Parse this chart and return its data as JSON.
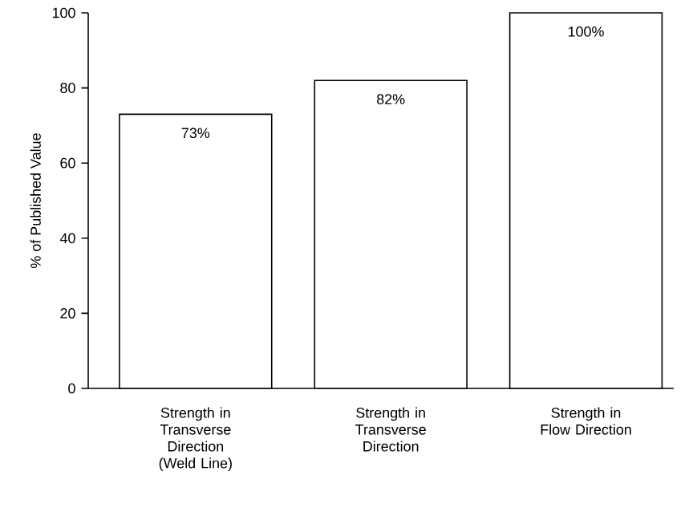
{
  "chart_data": {
    "type": "bar",
    "ylabel": "% of Published Value",
    "categories": [
      "Strength in Transverse Direction (Weld Line)",
      "Strength in Transverse Direction",
      "Strength in Flow Direction"
    ],
    "values": [
      73,
      82,
      100
    ],
    "value_labels": [
      "73%",
      "82%",
      "100%"
    ],
    "color": "#ffffff",
    "ylim": [
      0,
      100
    ],
    "yticks": [
      0,
      20,
      40,
      60,
      80,
      100
    ]
  }
}
